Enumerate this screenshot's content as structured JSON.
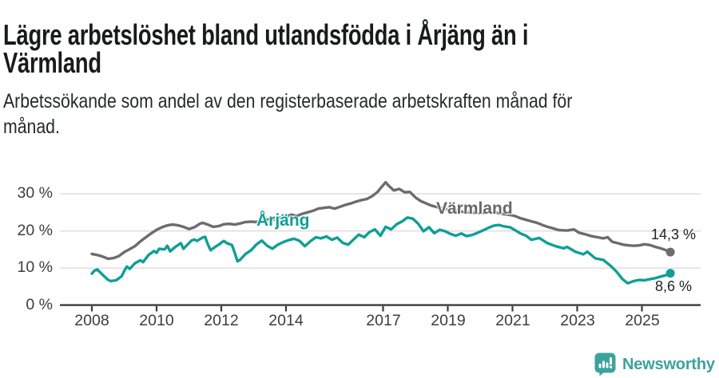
{
  "header": {
    "title_lines": [
      "Lägre arbetslöshet bland utlandsfödda i Årjäng än i",
      "Värmland"
    ],
    "subtitle_lines": [
      "Arbetssökande som andel av den registerbaserade arbetskraften månad för",
      "månad."
    ]
  },
  "branding": {
    "name": "Newsworthy",
    "logo_icon": "speech-bubble-bar-chart-icon",
    "color": "#3ba39d"
  },
  "colors": {
    "varmland_line": "#6c6b70",
    "arjang_line": "#0f9f95",
    "gridline": "#d8d8d8",
    "axis": "#3a3a3a",
    "axis_text": "#3d3d3d"
  },
  "chart_data": {
    "type": "line",
    "unit": "%",
    "x_axis": {
      "tick_years": [
        2008,
        2010,
        2012,
        2014,
        2017,
        2019,
        2021,
        2023,
        2025
      ],
      "range": [
        2007.0,
        2026.8
      ]
    },
    "y_axis": {
      "ticks": [
        {
          "value": 0,
          "label": "0 %"
        },
        {
          "value": 10,
          "label": "10 %"
        },
        {
          "value": 20,
          "label": "20 %"
        },
        {
          "value": 30,
          "label": "30 %"
        }
      ],
      "gridline_values": [
        10,
        20,
        30
      ],
      "range": [
        0,
        34
      ]
    },
    "series": [
      {
        "name": "Värmland",
        "color": "#6c6b70",
        "end_label": "14,3 %",
        "end_value": 14.3,
        "points": [
          [
            2008.0,
            13.8
          ],
          [
            2008.17,
            13.5
          ],
          [
            2008.33,
            13.1
          ],
          [
            2008.5,
            12.5
          ],
          [
            2008.67,
            12.7
          ],
          [
            2008.83,
            13.2
          ],
          [
            2009.0,
            14.3
          ],
          [
            2009.17,
            15.1
          ],
          [
            2009.33,
            15.9
          ],
          [
            2009.5,
            17.2
          ],
          [
            2009.67,
            18.3
          ],
          [
            2009.83,
            19.3
          ],
          [
            2010.0,
            20.3
          ],
          [
            2010.17,
            21.0
          ],
          [
            2010.33,
            21.5
          ],
          [
            2010.5,
            21.7
          ],
          [
            2010.67,
            21.5
          ],
          [
            2010.83,
            21.1
          ],
          [
            2011.0,
            20.5
          ],
          [
            2011.17,
            21.0
          ],
          [
            2011.33,
            21.9
          ],
          [
            2011.42,
            22.2
          ],
          [
            2011.58,
            21.7
          ],
          [
            2011.75,
            21.1
          ],
          [
            2011.92,
            21.3
          ],
          [
            2012.08,
            21.8
          ],
          [
            2012.25,
            21.9
          ],
          [
            2012.42,
            21.7
          ],
          [
            2012.58,
            22.0
          ],
          [
            2012.75,
            22.4
          ],
          [
            2012.92,
            22.5
          ],
          [
            2013.08,
            22.4
          ],
          [
            2013.25,
            22.9
          ],
          [
            2013.42,
            23.1
          ],
          [
            2013.58,
            23.0
          ],
          [
            2013.75,
            23.4
          ],
          [
            2013.92,
            23.8
          ],
          [
            2014.08,
            24.1
          ],
          [
            2014.17,
            24.4
          ],
          [
            2014.33,
            24.0
          ],
          [
            2014.5,
            24.6
          ],
          [
            2014.67,
            25.0
          ],
          [
            2014.83,
            25.4
          ],
          [
            2015.0,
            26.0
          ],
          [
            2015.17,
            26.2
          ],
          [
            2015.33,
            26.4
          ],
          [
            2015.5,
            26.0
          ],
          [
            2015.67,
            26.5
          ],
          [
            2015.83,
            27.0
          ],
          [
            2016.0,
            27.4
          ],
          [
            2016.17,
            27.9
          ],
          [
            2016.33,
            28.3
          ],
          [
            2016.5,
            28.6
          ],
          [
            2016.67,
            29.4
          ],
          [
            2016.83,
            30.5
          ],
          [
            2016.92,
            31.5
          ],
          [
            2017.0,
            32.3
          ],
          [
            2017.08,
            33.1
          ],
          [
            2017.17,
            32.2
          ],
          [
            2017.33,
            30.9
          ],
          [
            2017.5,
            31.3
          ],
          [
            2017.67,
            30.4
          ],
          [
            2017.83,
            30.5
          ],
          [
            2018.0,
            29.0
          ],
          [
            2018.17,
            28.0
          ],
          [
            2018.33,
            27.4
          ],
          [
            2018.5,
            26.8
          ],
          [
            2018.67,
            26.4
          ],
          [
            2018.83,
            26.1
          ],
          [
            2019.0,
            25.8
          ],
          [
            2019.25,
            25.4
          ],
          [
            2019.5,
            25.1
          ],
          [
            2019.75,
            24.9
          ],
          [
            2020.0,
            24.8
          ],
          [
            2020.25,
            25.0
          ],
          [
            2020.5,
            24.9
          ],
          [
            2020.75,
            24.5
          ],
          [
            2020.92,
            24.3
          ],
          [
            2021.08,
            24.0
          ],
          [
            2021.25,
            23.4
          ],
          [
            2021.42,
            23.0
          ],
          [
            2021.58,
            22.6
          ],
          [
            2021.75,
            22.2
          ],
          [
            2021.92,
            21.6
          ],
          [
            2022.08,
            21.1
          ],
          [
            2022.25,
            20.7
          ],
          [
            2022.44,
            20.2
          ],
          [
            2022.69,
            20.1
          ],
          [
            2022.9,
            20.4
          ],
          [
            2023.06,
            19.5
          ],
          [
            2023.25,
            19.1
          ],
          [
            2023.44,
            18.6
          ],
          [
            2023.63,
            18.3
          ],
          [
            2023.81,
            18.0
          ],
          [
            2023.94,
            18.3
          ],
          [
            2024.08,
            17.1
          ],
          [
            2024.25,
            16.7
          ],
          [
            2024.42,
            16.3
          ],
          [
            2024.58,
            16.1
          ],
          [
            2024.75,
            16.0
          ],
          [
            2024.92,
            16.1
          ],
          [
            2025.08,
            16.4
          ],
          [
            2025.25,
            16.2
          ],
          [
            2025.42,
            15.7
          ],
          [
            2025.58,
            15.3
          ],
          [
            2025.75,
            14.8
          ],
          [
            2025.88,
            14.3
          ]
        ]
      },
      {
        "name": "Årjäng",
        "color": "#0f9f95",
        "end_label": "8,6 %",
        "end_value": 8.6,
        "points": [
          [
            2008.0,
            8.5
          ],
          [
            2008.08,
            9.3
          ],
          [
            2008.17,
            9.6
          ],
          [
            2008.33,
            8.2
          ],
          [
            2008.5,
            6.8
          ],
          [
            2008.58,
            6.5
          ],
          [
            2008.75,
            6.7
          ],
          [
            2008.92,
            7.8
          ],
          [
            2009.0,
            9.2
          ],
          [
            2009.08,
            10.4
          ],
          [
            2009.17,
            9.8
          ],
          [
            2009.33,
            11.3
          ],
          [
            2009.5,
            12.1
          ],
          [
            2009.58,
            11.6
          ],
          [
            2009.75,
            13.5
          ],
          [
            2009.92,
            14.6
          ],
          [
            2010.0,
            14.1
          ],
          [
            2010.08,
            15.2
          ],
          [
            2010.25,
            15.0
          ],
          [
            2010.33,
            16.0
          ],
          [
            2010.42,
            14.5
          ],
          [
            2010.58,
            15.7
          ],
          [
            2010.75,
            16.7
          ],
          [
            2010.83,
            15.2
          ],
          [
            2010.92,
            16.0
          ],
          [
            2011.08,
            17.4
          ],
          [
            2011.17,
            17.7
          ],
          [
            2011.25,
            17.3
          ],
          [
            2011.42,
            18.2
          ],
          [
            2011.5,
            18.4
          ],
          [
            2011.58,
            16.5
          ],
          [
            2011.67,
            14.8
          ],
          [
            2011.83,
            15.8
          ],
          [
            2011.92,
            16.3
          ],
          [
            2012.08,
            17.3
          ],
          [
            2012.17,
            16.7
          ],
          [
            2012.33,
            16.2
          ],
          [
            2012.42,
            14.0
          ],
          [
            2012.5,
            11.8
          ],
          [
            2012.58,
            12.2
          ],
          [
            2012.75,
            13.8
          ],
          [
            2012.92,
            14.8
          ],
          [
            2013.08,
            16.3
          ],
          [
            2013.25,
            17.4
          ],
          [
            2013.42,
            16.0
          ],
          [
            2013.58,
            15.2
          ],
          [
            2013.75,
            16.3
          ],
          [
            2013.92,
            17.0
          ],
          [
            2014.08,
            17.5
          ],
          [
            2014.25,
            17.9
          ],
          [
            2014.42,
            17.3
          ],
          [
            2014.58,
            15.9
          ],
          [
            2014.75,
            17.2
          ],
          [
            2014.92,
            18.3
          ],
          [
            2015.08,
            18.0
          ],
          [
            2015.25,
            18.5
          ],
          [
            2015.42,
            17.6
          ],
          [
            2015.58,
            18.2
          ],
          [
            2015.75,
            16.8
          ],
          [
            2015.92,
            16.3
          ],
          [
            2016.08,
            17.6
          ],
          [
            2016.25,
            19.0
          ],
          [
            2016.42,
            18.3
          ],
          [
            2016.58,
            19.7
          ],
          [
            2016.75,
            20.4
          ],
          [
            2016.92,
            18.7
          ],
          [
            2017.08,
            21.1
          ],
          [
            2017.25,
            20.4
          ],
          [
            2017.42,
            21.8
          ],
          [
            2017.58,
            22.5
          ],
          [
            2017.75,
            23.6
          ],
          [
            2017.92,
            23.3
          ],
          [
            2018.08,
            22.0
          ],
          [
            2018.25,
            19.9
          ],
          [
            2018.42,
            21.0
          ],
          [
            2018.58,
            19.4
          ],
          [
            2018.75,
            20.3
          ],
          [
            2018.92,
            19.9
          ],
          [
            2019.08,
            19.2
          ],
          [
            2019.25,
            18.7
          ],
          [
            2019.42,
            19.3
          ],
          [
            2019.58,
            18.6
          ],
          [
            2019.75,
            18.9
          ],
          [
            2019.92,
            19.5
          ],
          [
            2020.08,
            20.1
          ],
          [
            2020.25,
            20.8
          ],
          [
            2020.42,
            21.4
          ],
          [
            2020.58,
            21.6
          ],
          [
            2020.75,
            21.2
          ],
          [
            2020.92,
            21.0
          ],
          [
            2021.08,
            20.2
          ],
          [
            2021.25,
            19.3
          ],
          [
            2021.42,
            18.7
          ],
          [
            2021.58,
            17.6
          ],
          [
            2021.83,
            18.1
          ],
          [
            2022.08,
            16.7
          ],
          [
            2022.33,
            15.9
          ],
          [
            2022.58,
            15.3
          ],
          [
            2022.69,
            15.7
          ],
          [
            2022.94,
            14.4
          ],
          [
            2023.19,
            13.7
          ],
          [
            2023.31,
            14.4
          ],
          [
            2023.56,
            12.6
          ],
          [
            2023.81,
            12.2
          ],
          [
            2024.06,
            10.4
          ],
          [
            2024.22,
            9.0
          ],
          [
            2024.4,
            7.0
          ],
          [
            2024.56,
            5.9
          ],
          [
            2024.75,
            6.5
          ],
          [
            2024.92,
            6.8
          ],
          [
            2025.08,
            6.7
          ],
          [
            2025.25,
            7.0
          ],
          [
            2025.42,
            7.3
          ],
          [
            2025.58,
            7.7
          ],
          [
            2025.75,
            8.1
          ],
          [
            2025.88,
            8.6
          ]
        ]
      }
    ]
  }
}
